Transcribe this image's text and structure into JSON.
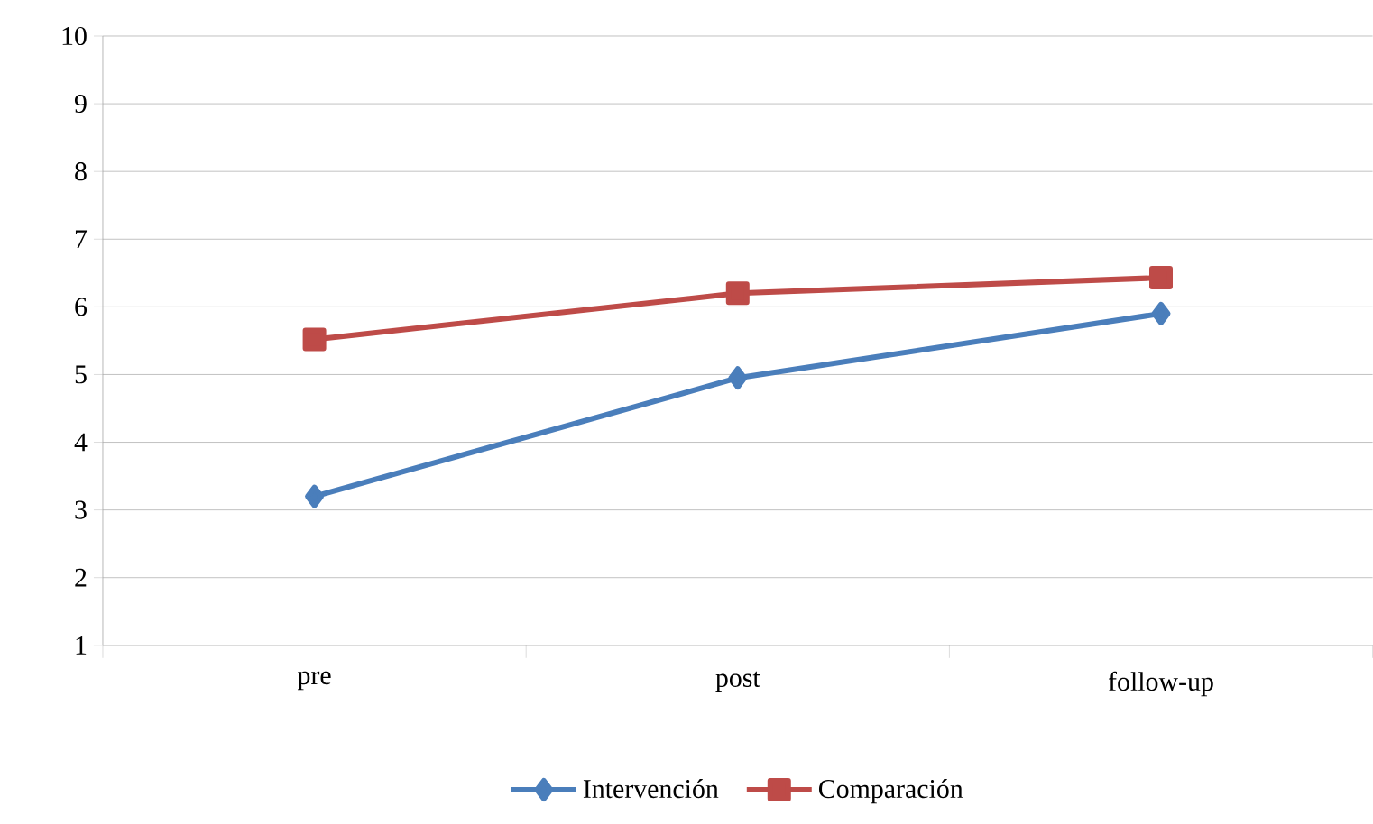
{
  "chart_data": {
    "type": "line",
    "categories": [
      "pre",
      "post",
      "follow-up"
    ],
    "series": [
      {
        "name": "Intervención",
        "color": "#4a7ebb",
        "marker": "diamond",
        "values": [
          3.2,
          4.95,
          5.9
        ]
      },
      {
        "name": "Comparación",
        "color": "#be4b48",
        "marker": "square",
        "values": [
          5.52,
          6.2,
          6.43
        ]
      }
    ],
    "ylim": [
      1,
      10
    ],
    "yticks": [
      1,
      2,
      3,
      4,
      5,
      6,
      7,
      8,
      9,
      10
    ],
    "grid": "y",
    "legend": "bottom",
    "line_style": "solid"
  }
}
